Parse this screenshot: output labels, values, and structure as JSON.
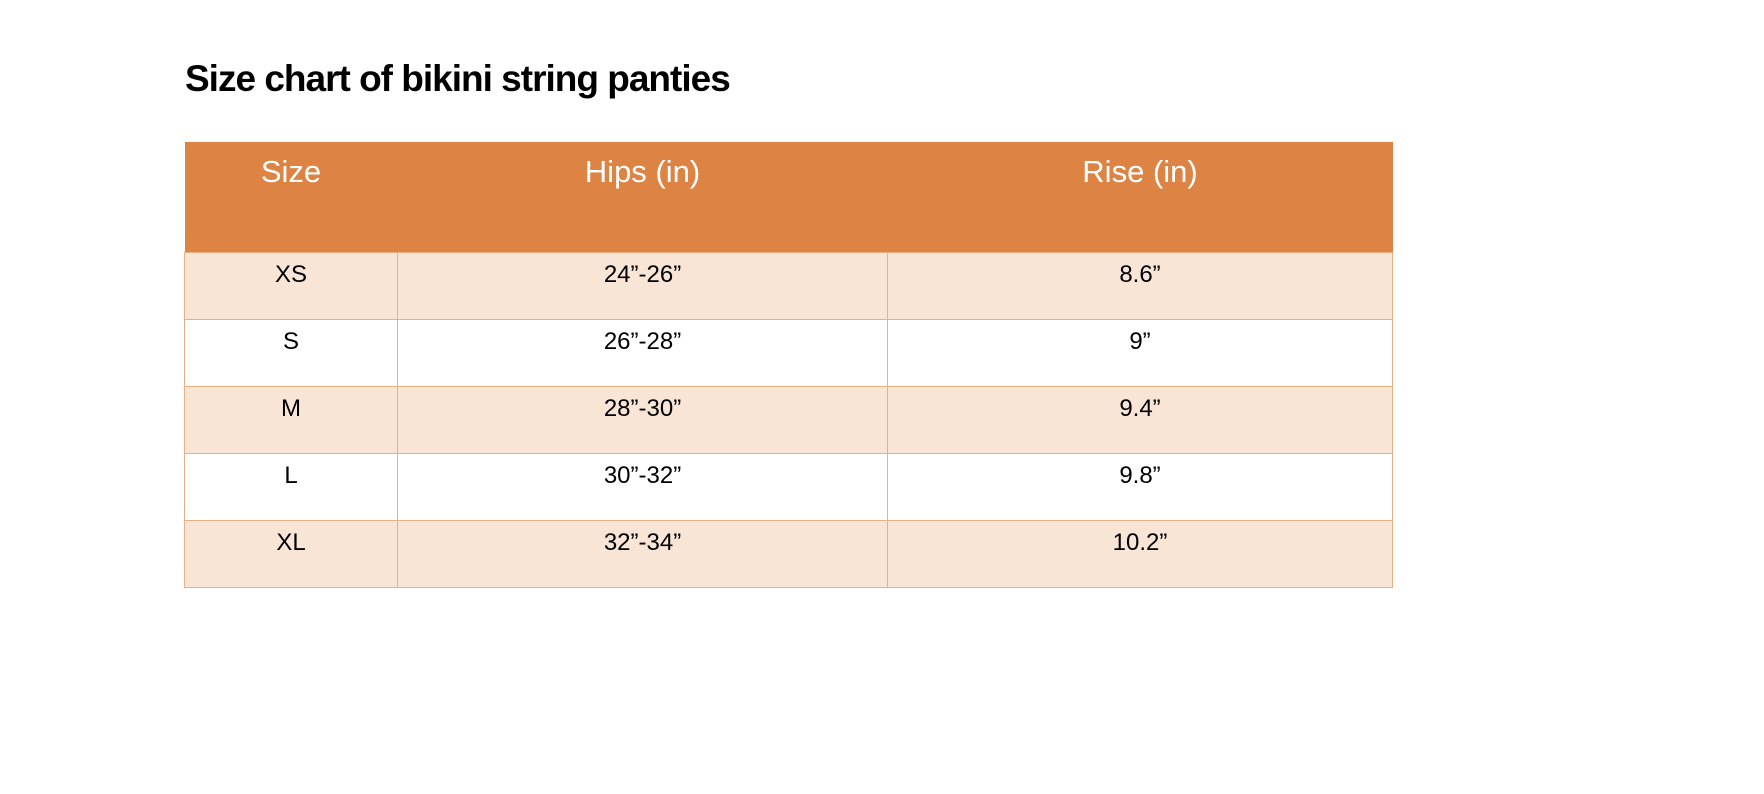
{
  "page": {
    "title": "Size chart of bikini string panties"
  },
  "colors": {
    "header_bg": "#DD8444",
    "band_row_bg": "#F8E5D6",
    "plain_row_bg": "#FFFFFF",
    "border": "#E9B183",
    "header_text": "#FFFFFF",
    "body_text": "#000000",
    "title_text": "#000000"
  },
  "chart_data": {
    "type": "table",
    "title": "Size chart of bikini string panties",
    "columns": [
      "Size",
      "Hips (in)",
      "Rise (in)"
    ],
    "rows": [
      [
        "XS",
        "24”-26”",
        "8.6”"
      ],
      [
        "S",
        "26”-28”",
        "9”"
      ],
      [
        "M",
        "28”-30”",
        "9.4”"
      ],
      [
        "L",
        "30”-32”",
        "9.8”"
      ],
      [
        "XL",
        "32”-34”",
        "10.2”"
      ]
    ],
    "layout": {
      "header_style": "solid orange band, white text, no internal dividers",
      "row_banding": "odd rows peach, even rows white",
      "alignment": "all cells center-aligned, top-anchored"
    }
  }
}
